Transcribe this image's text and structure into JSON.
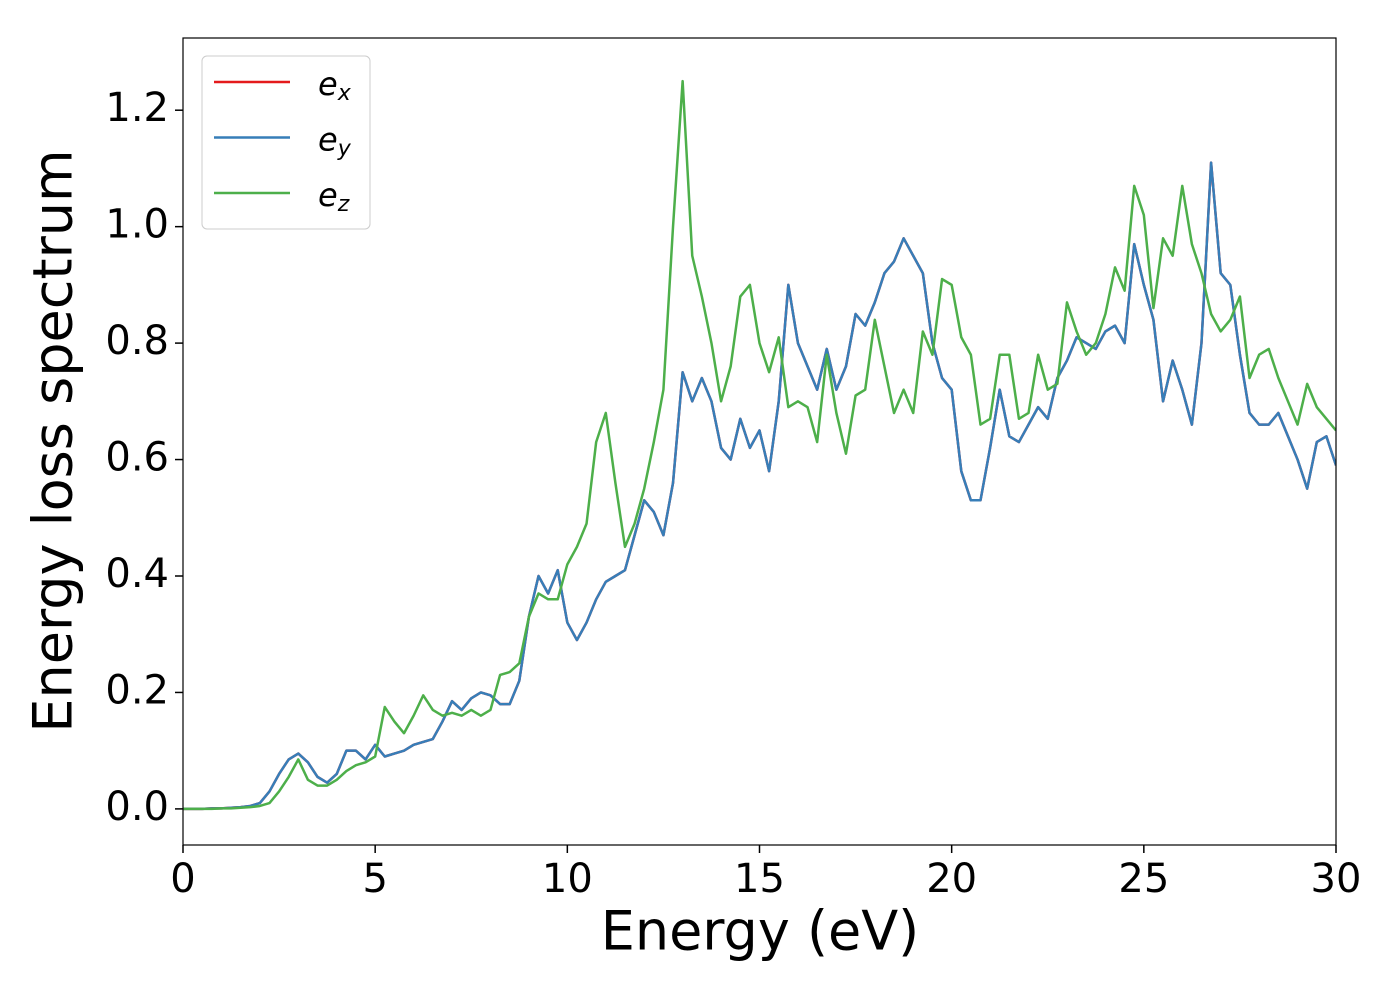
{
  "chart_data": {
    "type": "line",
    "xlabel": "Energy (eV)",
    "ylabel": "Energy loss spectrum",
    "x": [
      0,
      0.25,
      0.5,
      0.75,
      1,
      1.25,
      1.5,
      1.75,
      2,
      2.25,
      2.5,
      2.75,
      3,
      3.25,
      3.5,
      3.75,
      4,
      4.25,
      4.5,
      4.75,
      5,
      5.25,
      5.5,
      5.75,
      6,
      6.25,
      6.5,
      6.75,
      7,
      7.25,
      7.5,
      7.75,
      8,
      8.25,
      8.5,
      8.75,
      9,
      9.25,
      9.5,
      9.75,
      10,
      10.25,
      10.5,
      10.75,
      11,
      11.25,
      11.5,
      11.75,
      12,
      12.25,
      12.5,
      12.75,
      13,
      13.25,
      13.5,
      13.75,
      14,
      14.25,
      14.5,
      14.75,
      15,
      15.25,
      15.5,
      15.75,
      16,
      16.25,
      16.5,
      16.75,
      17,
      17.25,
      17.5,
      17.75,
      18,
      18.25,
      18.5,
      18.75,
      19,
      19.25,
      19.5,
      19.75,
      20,
      20.25,
      20.5,
      20.75,
      21,
      21.25,
      21.5,
      21.75,
      22,
      22.25,
      22.5,
      22.75,
      23,
      23.25,
      23.5,
      23.75,
      24,
      24.25,
      24.5,
      24.75,
      25,
      25.25,
      25.5,
      25.75,
      26,
      26.25,
      26.5,
      26.75,
      27,
      27.25,
      27.5,
      27.75,
      28,
      28.25,
      28.5,
      28.75,
      29,
      29.25,
      29.5,
      29.75,
      30
    ],
    "series": [
      {
        "name": "ex",
        "color": "#e41a1c",
        "values": [
          0,
          0,
          0,
          0.001,
          0.001,
          0.002,
          0.003,
          0.005,
          0.01,
          0.03,
          0.06,
          0.085,
          0.095,
          0.08,
          0.055,
          0.045,
          0.06,
          0.1,
          0.1,
          0.085,
          0.11,
          0.09,
          0.095,
          0.1,
          0.11,
          0.115,
          0.12,
          0.15,
          0.185,
          0.17,
          0.19,
          0.2,
          0.195,
          0.18,
          0.18,
          0.22,
          0.33,
          0.4,
          0.37,
          0.41,
          0.32,
          0.29,
          0.32,
          0.36,
          0.39,
          0.4,
          0.41,
          0.47,
          0.53,
          0.51,
          0.47,
          0.56,
          0.75,
          0.7,
          0.74,
          0.7,
          0.62,
          0.6,
          0.67,
          0.62,
          0.65,
          0.58,
          0.7,
          0.9,
          0.8,
          0.76,
          0.72,
          0.79,
          0.72,
          0.76,
          0.85,
          0.83,
          0.87,
          0.92,
          0.94,
          0.98,
          0.95,
          0.92,
          0.8,
          0.74,
          0.72,
          0.58,
          0.53,
          0.53,
          0.62,
          0.72,
          0.64,
          0.63,
          0.66,
          0.69,
          0.67,
          0.74,
          0.77,
          0.81,
          0.8,
          0.79,
          0.82,
          0.83,
          0.8,
          0.97,
          0.9,
          0.84,
          0.7,
          0.77,
          0.72,
          0.66,
          0.8,
          1.11,
          0.92,
          0.9,
          0.78,
          0.68,
          0.66,
          0.66,
          0.68,
          0.64,
          0.6,
          0.55,
          0.63,
          0.64,
          0.59
        ]
      },
      {
        "name": "ey",
        "color": "#377eb8",
        "values": [
          0,
          0,
          0,
          0.001,
          0.001,
          0.002,
          0.003,
          0.005,
          0.01,
          0.03,
          0.06,
          0.085,
          0.095,
          0.08,
          0.055,
          0.045,
          0.06,
          0.1,
          0.1,
          0.085,
          0.11,
          0.09,
          0.095,
          0.1,
          0.11,
          0.115,
          0.12,
          0.15,
          0.185,
          0.17,
          0.19,
          0.2,
          0.195,
          0.18,
          0.18,
          0.22,
          0.33,
          0.4,
          0.37,
          0.41,
          0.32,
          0.29,
          0.32,
          0.36,
          0.39,
          0.4,
          0.41,
          0.47,
          0.53,
          0.51,
          0.47,
          0.56,
          0.75,
          0.7,
          0.74,
          0.7,
          0.62,
          0.6,
          0.67,
          0.62,
          0.65,
          0.58,
          0.7,
          0.9,
          0.8,
          0.76,
          0.72,
          0.79,
          0.72,
          0.76,
          0.85,
          0.83,
          0.87,
          0.92,
          0.94,
          0.98,
          0.95,
          0.92,
          0.8,
          0.74,
          0.72,
          0.58,
          0.53,
          0.53,
          0.62,
          0.72,
          0.64,
          0.63,
          0.66,
          0.69,
          0.67,
          0.74,
          0.77,
          0.81,
          0.8,
          0.79,
          0.82,
          0.83,
          0.8,
          0.97,
          0.9,
          0.84,
          0.7,
          0.77,
          0.72,
          0.66,
          0.8,
          1.11,
          0.92,
          0.9,
          0.78,
          0.68,
          0.66,
          0.66,
          0.68,
          0.64,
          0.6,
          0.55,
          0.63,
          0.64,
          0.59
        ]
      },
      {
        "name": "ez",
        "color": "#4daf4a",
        "values": [
          0,
          0,
          0,
          0,
          0.001,
          0.001,
          0.002,
          0.003,
          0.005,
          0.01,
          0.03,
          0.055,
          0.085,
          0.05,
          0.04,
          0.04,
          0.05,
          0.065,
          0.075,
          0.08,
          0.09,
          0.175,
          0.15,
          0.13,
          0.16,
          0.195,
          0.17,
          0.16,
          0.165,
          0.16,
          0.17,
          0.16,
          0.17,
          0.23,
          0.235,
          0.25,
          0.33,
          0.37,
          0.36,
          0.36,
          0.42,
          0.45,
          0.49,
          0.63,
          0.68,
          0.56,
          0.45,
          0.49,
          0.55,
          0.63,
          0.72,
          1.0,
          1.25,
          0.95,
          0.88,
          0.8,
          0.7,
          0.76,
          0.88,
          0.9,
          0.8,
          0.75,
          0.81,
          0.69,
          0.7,
          0.69,
          0.63,
          0.78,
          0.68,
          0.61,
          0.71,
          0.72,
          0.84,
          0.76,
          0.68,
          0.72,
          0.68,
          0.82,
          0.78,
          0.91,
          0.9,
          0.81,
          0.78,
          0.66,
          0.67,
          0.78,
          0.78,
          0.67,
          0.68,
          0.78,
          0.72,
          0.73,
          0.87,
          0.82,
          0.78,
          0.8,
          0.85,
          0.93,
          0.89,
          1.07,
          1.02,
          0.86,
          0.98,
          0.95,
          1.07,
          0.97,
          0.92,
          0.85,
          0.82,
          0.84,
          0.88,
          0.74,
          0.78,
          0.79,
          0.74,
          0.7,
          0.66,
          0.73,
          0.69,
          0.67,
          0.65
        ]
      }
    ],
    "xlim": [
      0,
      30
    ],
    "xticks": [
      0,
      5,
      10,
      15,
      20,
      25,
      30
    ],
    "ylim": [
      -0.062,
      1.324
    ],
    "yticks": [
      {
        "value": 0,
        "label": "0.0"
      },
      0.2,
      0.4,
      0.6,
      0.8,
      {
        "value": 1,
        "label": "1.0"
      },
      1.2
    ],
    "legend": "upper left"
  }
}
